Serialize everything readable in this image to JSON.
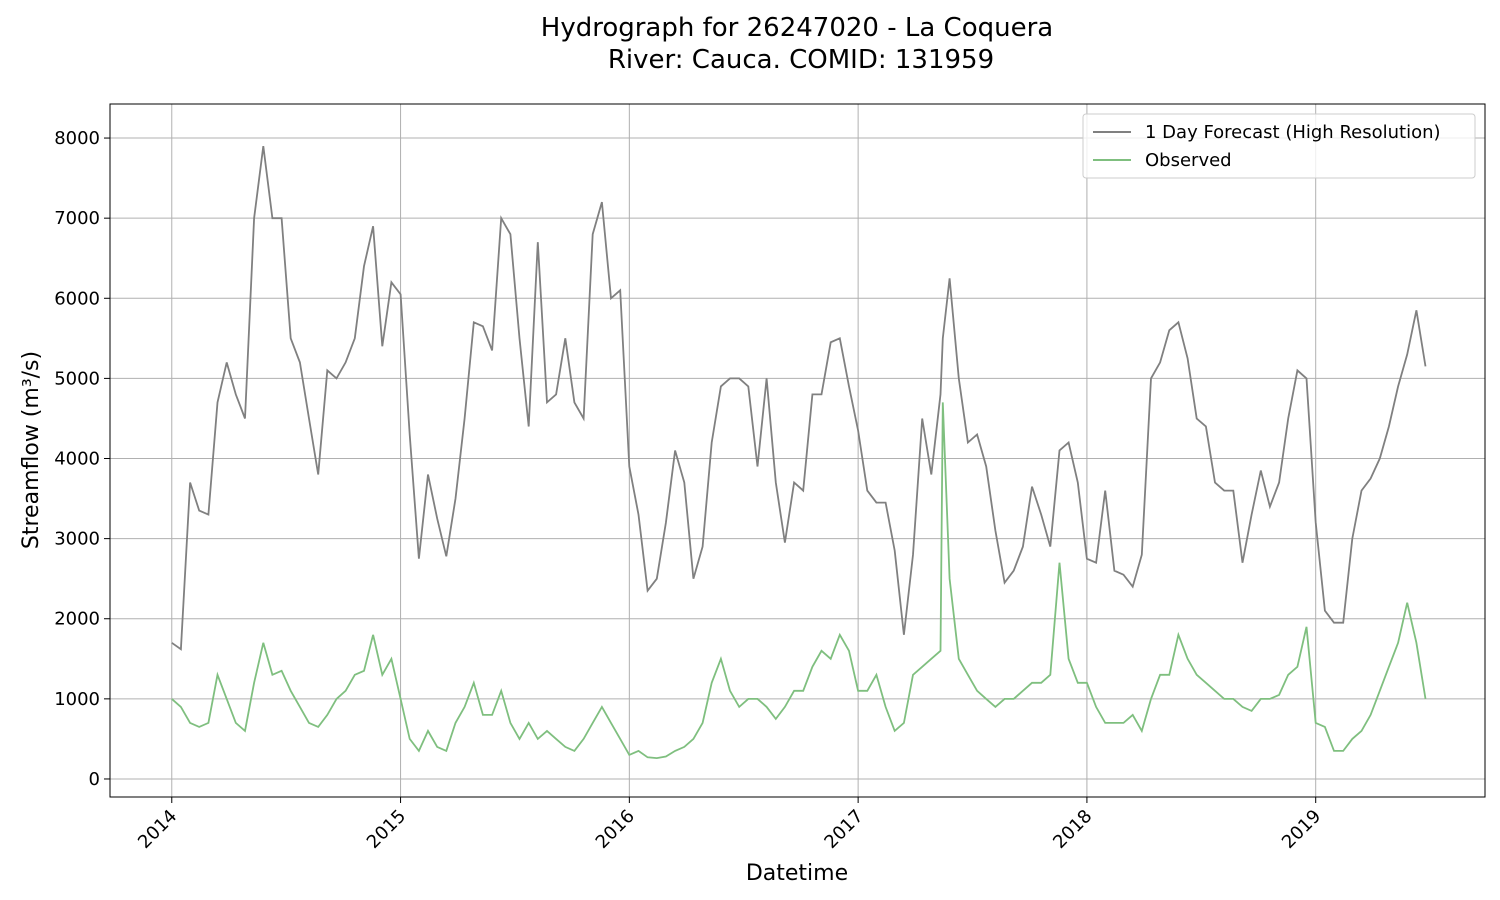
{
  "chart_data": {
    "type": "line",
    "title": [
      "Hydrograph for 26247020 - La Coquera",
      "River: Cauca. COMID: 131959"
    ],
    "x_label": "Datetime",
    "y_label": "Streamflow (m³/s)",
    "x": [
      2014,
      2014.04,
      2014.08,
      2014.12,
      2014.16,
      2014.2,
      2014.24,
      2014.28,
      2014.32,
      2014.36,
      2014.4,
      2014.44,
      2014.48,
      2014.52,
      2014.56,
      2014.6,
      2014.64,
      2014.68,
      2014.72,
      2014.76,
      2014.8,
      2014.84,
      2014.88,
      2014.92,
      2014.96,
      2015,
      2015.04,
      2015.08,
      2015.12,
      2015.16,
      2015.2,
      2015.24,
      2015.28,
      2015.32,
      2015.36,
      2015.4,
      2015.44,
      2015.48,
      2015.52,
      2015.56,
      2015.6,
      2015.64,
      2015.68,
      2015.72,
      2015.76,
      2015.8,
      2015.84,
      2015.88,
      2015.92,
      2015.96,
      2016,
      2016.04,
      2016.08,
      2016.12,
      2016.16,
      2016.2,
      2016.24,
      2016.28,
      2016.32,
      2016.36,
      2016.4,
      2016.44,
      2016.48,
      2016.52,
      2016.56,
      2016.6,
      2016.64,
      2016.68,
      2016.72,
      2016.76,
      2016.8,
      2016.84,
      2016.88,
      2016.92,
      2016.96,
      2017,
      2017.04,
      2017.08,
      2017.12,
      2017.16,
      2017.2,
      2017.24,
      2017.28,
      2017.32,
      2017.36,
      2017.37,
      2017.4,
      2017.44,
      2017.48,
      2017.52,
      2017.56,
      2017.6,
      2017.64,
      2017.68,
      2017.72,
      2017.76,
      2017.8,
      2017.84,
      2017.88,
      2017.92,
      2017.96,
      2018,
      2018.04,
      2018.08,
      2018.12,
      2018.16,
      2018.2,
      2018.24,
      2018.28,
      2018.32,
      2018.36,
      2018.4,
      2018.44,
      2018.48,
      2018.52,
      2018.56,
      2018.6,
      2018.64,
      2018.68,
      2018.72,
      2018.76,
      2018.8,
      2018.84,
      2018.88,
      2018.92,
      2018.96,
      2019,
      2019.04,
      2019.08,
      2019.12,
      2019.16,
      2019.2,
      2019.24,
      2019.28,
      2019.32,
      2019.36,
      2019.4,
      2019.44,
      2019.48
    ],
    "series": [
      {
        "name": "1 Day Forecast (High Resolution)",
        "color": "#808080",
        "values": [
          1700,
          1620,
          3700,
          3350,
          3300,
          4700,
          5200,
          4800,
          4500,
          7000,
          7900,
          7000,
          7000,
          5500,
          5200,
          4500,
          3800,
          5100,
          5000,
          5200,
          5500,
          6400,
          6900,
          5400,
          6200,
          6050,
          4300,
          2750,
          3800,
          3250,
          2780,
          3500,
          4500,
          5700,
          5650,
          5350,
          7000,
          6800,
          5500,
          4400,
          6700,
          4700,
          4800,
          5500,
          4700,
          4500,
          6800,
          7200,
          6000,
          6100,
          3900,
          3300,
          2350,
          2500,
          3200,
          4100,
          3700,
          2500,
          2900,
          4200,
          4900,
          5000,
          5000,
          4900,
          3900,
          5000,
          3700,
          2950,
          3700,
          3600,
          4800,
          4800,
          5450,
          5500,
          4900,
          4350,
          3600,
          3450,
          3450,
          2850,
          1800,
          2800,
          4500,
          3800,
          4800,
          5500,
          6250,
          5000,
          4200,
          4300,
          3900,
          3100,
          2450,
          2600,
          2900,
          3650,
          3300,
          2900,
          4100,
          4200,
          3700,
          2750,
          2700,
          3600,
          2600,
          2550,
          2400,
          2800,
          5000,
          5200,
          5600,
          5700,
          5250,
          4500,
          4400,
          3700,
          3600,
          3600,
          2700,
          3300,
          3850,
          3400,
          3700,
          4500,
          5100,
          5000,
          3200,
          2100,
          1950,
          1950,
          3000,
          3600,
          3750,
          4000,
          4400,
          4900,
          5300,
          5850,
          5150
        ]
      },
      {
        "name": "Observed",
        "color": "#7fbf7f",
        "values": [
          1000,
          900,
          700,
          650,
          700,
          1300,
          1000,
          700,
          600,
          1200,
          1700,
          1300,
          1350,
          1100,
          900,
          700,
          650,
          800,
          1000,
          1100,
          1300,
          1350,
          1800,
          1300,
          1500,
          1000,
          500,
          350,
          600,
          400,
          350,
          700,
          900,
          1200,
          800,
          800,
          1100,
          700,
          500,
          700,
          500,
          600,
          500,
          400,
          350,
          500,
          700,
          900,
          700,
          500,
          300,
          350,
          270,
          260,
          280,
          350,
          400,
          500,
          700,
          1200,
          1500,
          1100,
          900,
          1000,
          1000,
          900,
          750,
          900,
          1100,
          1100,
          1400,
          1600,
          1500,
          1800,
          1600,
          1100,
          1100,
          1300,
          900,
          600,
          700,
          1300,
          1400,
          1500,
          1600,
          4700,
          2500,
          1500,
          1300,
          1100,
          1000,
          900,
          1000,
          1000,
          1100,
          1200,
          1200,
          1300,
          2700,
          1500,
          1200,
          1200,
          900,
          700,
          700,
          700,
          800,
          600,
          1000,
          1300,
          1300,
          1800,
          1500,
          1300,
          1200,
          1100,
          1000,
          1000,
          900,
          850,
          1000,
          1000,
          1050,
          1300,
          1400,
          1900,
          700,
          650,
          350,
          350,
          500,
          600,
          800,
          1100,
          1400,
          1700,
          2200,
          1700,
          1000
        ]
      }
    ],
    "xlim": [
      2013.73,
      2019.74
    ],
    "xticks": [
      2014,
      2015,
      2016,
      2017,
      2018,
      2019
    ],
    "ylim": [
      -225,
      8425
    ],
    "yticks": [
      0,
      1000,
      2000,
      3000,
      4000,
      5000,
      6000,
      7000,
      8000
    ],
    "grid": true,
    "legend": "upper right"
  }
}
